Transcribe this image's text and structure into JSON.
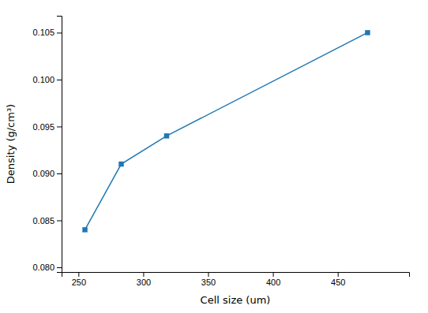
{
  "chart_data": {
    "type": "line",
    "x": [
      255,
      283,
      318,
      473
    ],
    "values": [
      0.084,
      0.091,
      0.094,
      0.105
    ],
    "xlabel": "Cell size (um)",
    "ylabel": "Density (g/cm³)",
    "xlim": [
      237,
      505
    ],
    "ylim": [
      0.0795,
      0.1068
    ],
    "xticks": [
      250,
      300,
      350,
      400,
      450
    ],
    "yticks": [
      {
        "value": 0.08,
        "label": "0.080"
      },
      0.085,
      {
        "value": 0.09,
        "label": "0.090"
      },
      0.095,
      {
        "value": 0.1,
        "label": "0.100"
      },
      0.105
    ],
    "marker": "square",
    "grid": false
  }
}
